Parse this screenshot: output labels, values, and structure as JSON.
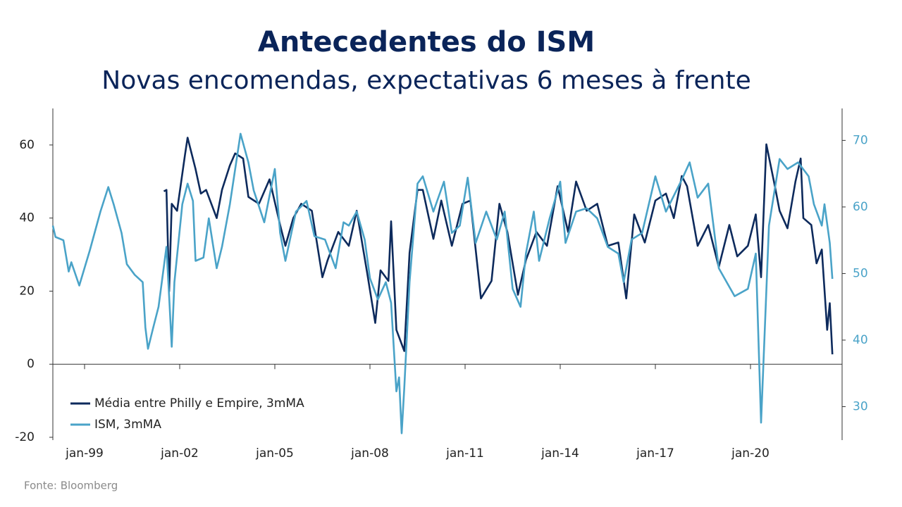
{
  "chart_data": {
    "type": "line",
    "title": "Antecedentes do ISM",
    "subtitle": "Novas encomendas, expectativas 6 meses à frente",
    "source": "Fonte: Bloomberg",
    "xlim": [
      "1998-01",
      "2022-09"
    ],
    "xticks": [
      {
        "value": "1999-01",
        "label": "jan-99"
      },
      {
        "value": "2002-01",
        "label": "jan-02"
      },
      {
        "value": "2005-01",
        "label": "jan-05"
      },
      {
        "value": "2008-01",
        "label": "jan-08"
      },
      {
        "value": "2011-01",
        "label": "jan-11"
      },
      {
        "value": "2014-01",
        "label": "jan-14"
      },
      {
        "value": "2017-01",
        "label": "jan-17"
      },
      {
        "value": "2020-01",
        "label": "jan-20"
      }
    ],
    "ylim": [
      -20,
      70
    ],
    "yticks": [
      -20,
      0,
      20,
      40,
      60
    ],
    "y2lim": [
      25.4,
      74.8
    ],
    "y2ticks": [
      30,
      40,
      50,
      60,
      70
    ],
    "legend": "lower left",
    "series": [
      {
        "name": "Média entre Philly e Empire, 3mMA",
        "color": "#0d2a5c",
        "axis": "y",
        "x": [
          "2001-07",
          "2001-08",
          "2001-09",
          "2001-10",
          "2001-12",
          "2002-03",
          "2002-04",
          "2002-07",
          "2002-09",
          "2002-11",
          "2003-03",
          "2003-05",
          "2003-08",
          "2003-10",
          "2004-01",
          "2004-03",
          "2004-07",
          "2004-11",
          "2005-03",
          "2005-05",
          "2005-08",
          "2005-11",
          "2006-03",
          "2006-07",
          "2006-09",
          "2007-01",
          "2007-05",
          "2007-08",
          "2007-12",
          "2008-03",
          "2008-05",
          "2008-08",
          "2008-09",
          "2008-11",
          "2009-02",
          "2009-04",
          "2009-07",
          "2009-09",
          "2010-01",
          "2010-04",
          "2010-08",
          "2010-12",
          "2011-03",
          "2011-07",
          "2011-11",
          "2012-02",
          "2012-05",
          "2012-09",
          "2012-12",
          "2013-04",
          "2013-08",
          "2013-12",
          "2014-04",
          "2014-07",
          "2014-11",
          "2015-03",
          "2015-07",
          "2015-11",
          "2016-02",
          "2016-05",
          "2016-09",
          "2017-01",
          "2017-05",
          "2017-08",
          "2017-11",
          "2018-01",
          "2018-05",
          "2018-09",
          "2019-01",
          "2019-05",
          "2019-08",
          "2019-12",
          "2020-03",
          "2020-05",
          "2020-07",
          "2020-10",
          "2020-12",
          "2021-03",
          "2021-06",
          "2021-08",
          "2021-09",
          "2021-12",
          "2022-02",
          "2022-04",
          "2022-06",
          "2022-07",
          "2022-08"
        ],
        "values": [
          47.3,
          47.7,
          19.9,
          43.9,
          42,
          57.3,
          62,
          53.4,
          46.7,
          47.7,
          40,
          47.7,
          54.4,
          57.7,
          56.3,
          45.8,
          43.9,
          50.6,
          38.1,
          32.4,
          40,
          43.9,
          42,
          23.8,
          28.5,
          36.2,
          32.4,
          42,
          24.7,
          11.3,
          25.7,
          22.8,
          39.1,
          9.4,
          3.6,
          30.5,
          47.7,
          47.7,
          34.3,
          44.8,
          32.4,
          43.9,
          44.8,
          18,
          22.8,
          43.9,
          36.2,
          19,
          28.5,
          36.2,
          32.4,
          48.7,
          36.2,
          50,
          42,
          43.9,
          32.4,
          33.3,
          18,
          41,
          33.3,
          44.8,
          46.7,
          40,
          51.5,
          48.7,
          32.4,
          38.1,
          26.6,
          38.1,
          29.5,
          32.4,
          41,
          23.8,
          60.2,
          49.6,
          42,
          37.2,
          50,
          56.3,
          40,
          38.1,
          27.6,
          31.4,
          9.4,
          16.7,
          2.7
        ]
      },
      {
        "name": "ISM, 3mMA",
        "color": "#4aa3c8",
        "axis": "y2",
        "x": [
          "1998-01",
          "1998-02",
          "1998-05",
          "1998-07",
          "1998-08",
          "1998-11",
          "1999-03",
          "1999-07",
          "1999-10",
          "1999-12",
          "2000-03",
          "2000-05",
          "2000-08",
          "2000-11",
          "2000-12",
          "2001-01",
          "2001-03",
          "2001-05",
          "2001-08",
          "2001-09",
          "2001-10",
          "2001-11",
          "2002-02",
          "2002-04",
          "2002-06",
          "2002-07",
          "2002-10",
          "2002-12",
          "2003-03",
          "2003-05",
          "2003-08",
          "2003-12",
          "2004-03",
          "2004-05",
          "2004-09",
          "2005-01",
          "2005-03",
          "2005-05",
          "2005-09",
          "2006-01",
          "2006-04",
          "2006-08",
          "2006-12",
          "2007-03",
          "2007-05",
          "2007-08",
          "2007-11",
          "2008-01",
          "2008-04",
          "2008-07",
          "2008-09",
          "2008-11",
          "2008-12",
          "2009-01",
          "2009-02",
          "2009-04",
          "2009-07",
          "2009-09",
          "2010-01",
          "2010-05",
          "2010-08",
          "2010-11",
          "2011-02",
          "2011-05",
          "2011-09",
          "2012-01",
          "2012-04",
          "2012-07",
          "2012-10",
          "2012-12",
          "2013-03",
          "2013-05",
          "2013-09",
          "2014-01",
          "2014-03",
          "2014-07",
          "2014-11",
          "2015-03",
          "2015-07",
          "2015-11",
          "2016-01",
          "2016-04",
          "2016-08",
          "2017-01",
          "2017-05",
          "2017-11",
          "2018-02",
          "2018-05",
          "2018-09",
          "2019-01",
          "2019-07",
          "2019-12",
          "2020-03",
          "2020-05",
          "2020-08",
          "2020-12",
          "2021-03",
          "2021-07",
          "2021-11",
          "2022-01",
          "2022-04",
          "2022-05",
          "2022-07",
          "2022-08"
        ],
        "values": [
          57.2,
          55.5,
          55,
          50.3,
          51.7,
          48.2,
          53.5,
          59.3,
          63,
          60.4,
          56.1,
          51.4,
          49.8,
          48.7,
          41.9,
          38.7,
          41.9,
          45,
          54,
          46.6,
          39,
          48.7,
          60.4,
          63.5,
          60.9,
          51.9,
          52.4,
          58.3,
          50.8,
          54,
          60.4,
          71,
          66.7,
          62.5,
          57.7,
          65.7,
          56.1,
          51.9,
          59.3,
          60.9,
          55.6,
          55.1,
          50.8,
          57.7,
          57.2,
          59.3,
          55.1,
          49.3,
          46.1,
          48.7,
          45.6,
          32.3,
          34.4,
          26,
          32.8,
          48.7,
          63.5,
          64.6,
          59.3,
          63.8,
          56.1,
          57.2,
          64.4,
          54.6,
          59.3,
          55.1,
          59.3,
          47.7,
          45,
          53,
          59.3,
          51.9,
          58.3,
          63.8,
          54.6,
          59.3,
          59.8,
          58.3,
          54,
          53,
          48.7,
          55.1,
          56.1,
          64.6,
          59.3,
          64.1,
          66.7,
          61.4,
          63.5,
          50.8,
          46.6,
          47.7,
          53,
          27.6,
          57.2,
          67.2,
          65.7,
          66.7,
          64.6,
          60.4,
          57.2,
          60.4,
          54.6,
          49.2
        ]
      }
    ]
  }
}
